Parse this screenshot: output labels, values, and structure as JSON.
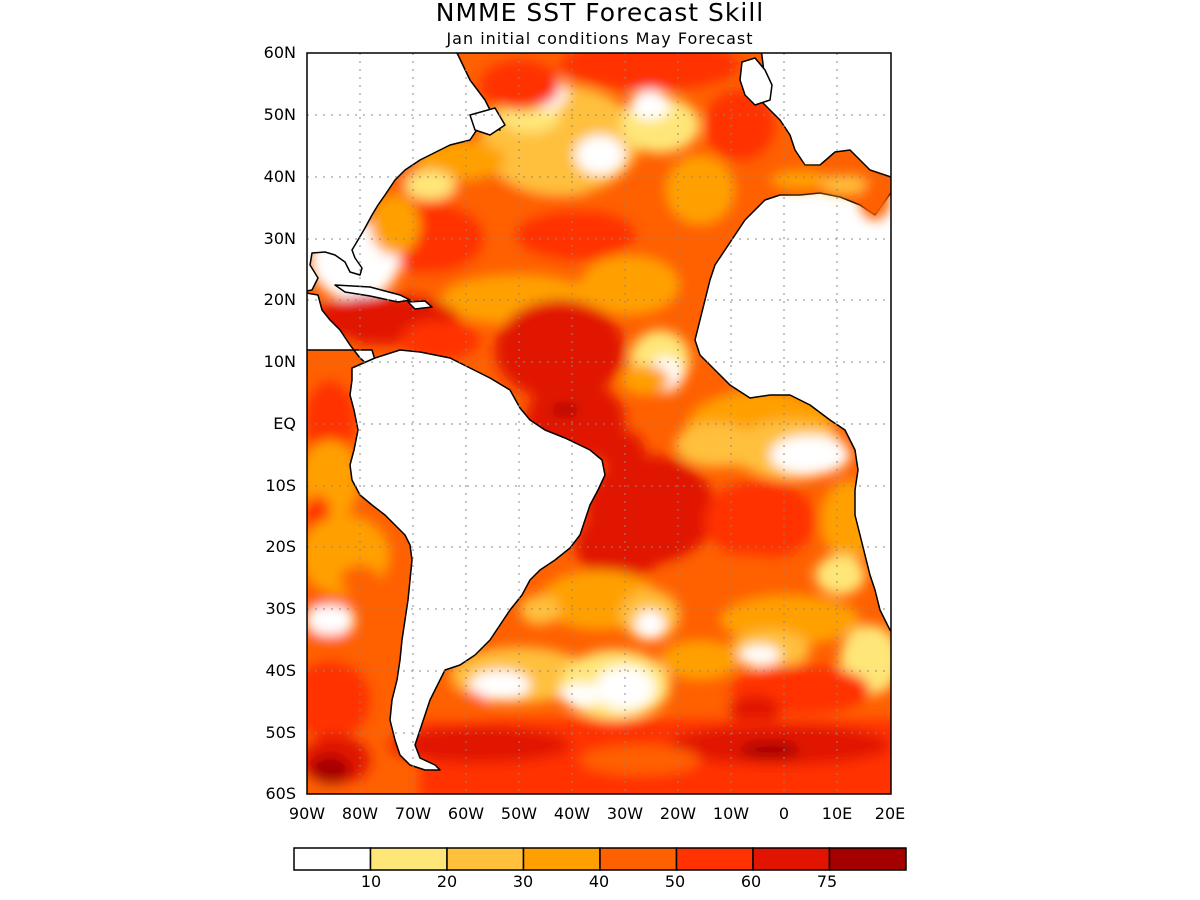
{
  "title": "NMME SST Forecast Skill",
  "subtitle": "Jan initial conditions   May Forecast",
  "lat_labels": [
    "60N",
    "50N",
    "40N",
    "30N",
    "20N",
    "10N",
    "EQ",
    "10S",
    "20S",
    "30S",
    "40S",
    "50S",
    "60S"
  ],
  "lon_labels": [
    "90W",
    "80W",
    "70W",
    "60W",
    "50W",
    "40W",
    "30W",
    "20W",
    "10W",
    "0",
    "10E",
    "20E"
  ],
  "colorbar": {
    "colors": [
      "#ffffff",
      "#ffe678",
      "#ffc03c",
      "#ffa000",
      "#ff6000",
      "#ff3200",
      "#e11400",
      "#a50000"
    ],
    "labels": [
      "10",
      "20",
      "30",
      "40",
      "50",
      "60",
      "75"
    ]
  },
  "map": {
    "region": "Atlantic Ocean",
    "lon_range": [
      -90,
      20
    ],
    "lat_range": [
      -60,
      60
    ],
    "gridlines": true,
    "land_color": "#ffffff",
    "skill_zones": [
      {
        "region": "Northeast Atlantic",
        "level": "50-60"
      },
      {
        "region": "Western subtropical Atlantic",
        "level": "50-60"
      },
      {
        "region": "Caribbean Sea",
        "level": "60-75"
      },
      {
        "region": "Tropical western Atlantic (off Brazil)",
        "level": "60-75"
      },
      {
        "region": "Southwest South Atlantic (Brazil coast)",
        "level": "60-75"
      },
      {
        "region": "Gulf of Guinea",
        "level": "<10"
      },
      {
        "region": "Canary upwelling",
        "level": "10-30"
      },
      {
        "region": "Eastern tropical Pacific",
        "level": "40-60"
      },
      {
        "region": "Southern Ocean near Drake Passage",
        "level": ">75"
      },
      {
        "region": "Southern Ocean (50S belt)",
        "level": "60-75"
      },
      {
        "region": "South Atlantic mid-latitudes",
        "level": "10-40"
      }
    ]
  }
}
